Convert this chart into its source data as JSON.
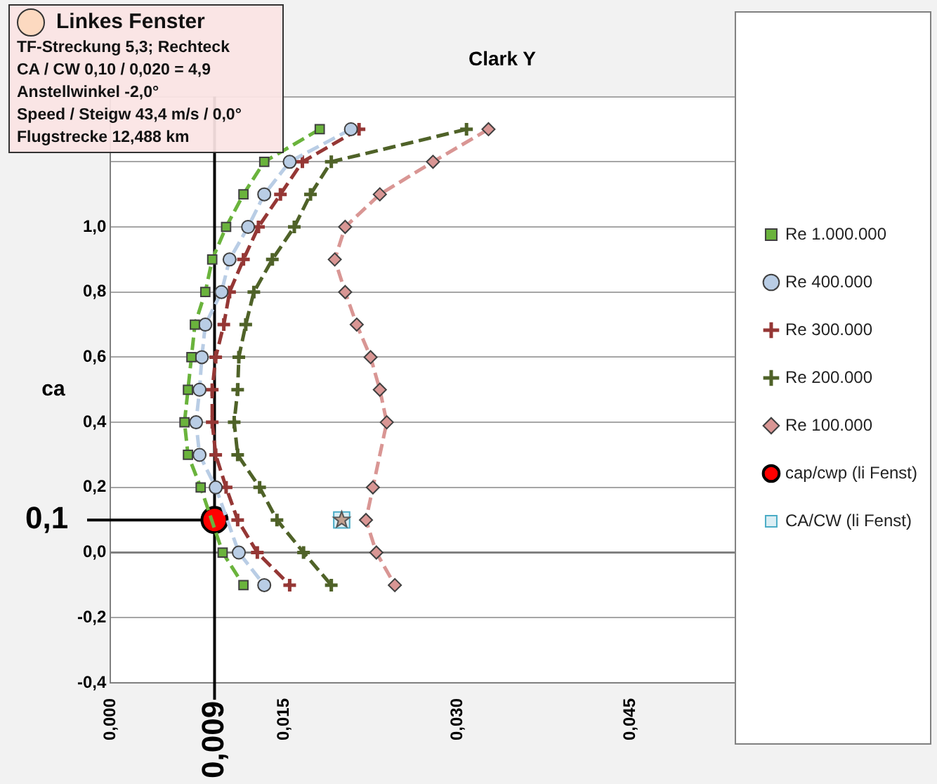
{
  "chart_data": {
    "type": "line",
    "title": "Clark Y",
    "ylabel": "ca",
    "annotations": [
      "Linkes Fenster",
      "TF-Streckung 5,3; Rechteck",
      "CA / CW   0,10 / 0,020 = 4,9",
      "Anstellwinkel  -2,0°",
      "Speed / Steigw 43,4 m/s / 0,0°",
      "Flugstrecke 12,488 km"
    ],
    "xlim": [
      0,
      0.054
    ],
    "ylim": [
      -0.4,
      1.4
    ],
    "xticks": [
      {
        "value": 0,
        "label": "0,000"
      },
      {
        "value": 0.015,
        "label": "0,015"
      },
      {
        "value": 0.03,
        "label": "0,030"
      },
      {
        "value": 0.045,
        "label": "0,045"
      }
    ],
    "yticks": [
      {
        "value": -0.4,
        "label": "-0,4"
      },
      {
        "value": -0.2,
        "label": "-0,2"
      },
      {
        "value": 0,
        "label": "0,0"
      },
      {
        "value": 0.2,
        "label": "0,2"
      },
      {
        "value": 0.4,
        "label": "0,4"
      },
      {
        "value": 0.6,
        "label": "0,6"
      },
      {
        "value": 0.8,
        "label": "0,8"
      },
      {
        "value": 1.0,
        "label": "1,0"
      },
      {
        "value": 1.2,
        "label": null
      },
      {
        "value": 1.4,
        "label": null
      }
    ],
    "grid": "y",
    "legend": "right",
    "ref_lines": [
      {
        "axis": "x",
        "value": 0.009,
        "label": "0,009",
        "color": "#000000"
      },
      {
        "axis": "y",
        "value": 0.1,
        "label": "0,1",
        "color": "#000000"
      }
    ],
    "series": [
      {
        "name": "Re 1.000.000",
        "color": "#6ab33c",
        "marker": "square",
        "line_style": "dashed",
        "x": [
          0.0181,
          0.0133,
          0.0115,
          0.01,
          0.0088,
          0.0082,
          0.0073,
          0.007,
          0.0067,
          0.0064,
          0.0067,
          0.0078,
          0.0097,
          0.0115
        ],
        "values": [
          1.3,
          1.2,
          1.1,
          1.0,
          0.9,
          0.8,
          0.7,
          0.6,
          0.5,
          0.4,
          0.3,
          0.2,
          0.0,
          -0.1
        ]
      },
      {
        "name": "Re 400.000",
        "color": "#b9cde5",
        "marker": "circle",
        "line_style": "dashed",
        "x": [
          0.0208,
          0.0155,
          0.0133,
          0.0119,
          0.0103,
          0.0096,
          0.0082,
          0.0079,
          0.0077,
          0.0074,
          0.0077,
          0.0091,
          0.0111,
          0.0133
        ],
        "values": [
          1.3,
          1.2,
          1.1,
          1.0,
          0.9,
          0.8,
          0.7,
          0.6,
          0.5,
          0.4,
          0.3,
          0.2,
          0.0,
          -0.1
        ]
      },
      {
        "name": "Re 300.000",
        "color": "#953735",
        "marker": "cross",
        "line_style": "dashed",
        "x": [
          0.0215,
          0.0166,
          0.0147,
          0.0128,
          0.0115,
          0.0103,
          0.0098,
          0.0091,
          0.0088,
          0.0088,
          0.0091,
          0.01,
          0.011,
          0.0127,
          0.0155
        ],
        "values": [
          1.3,
          1.2,
          1.1,
          1.0,
          0.9,
          0.8,
          0.7,
          0.6,
          0.5,
          0.4,
          0.3,
          0.2,
          0.1,
          0.0,
          -0.1
        ]
      },
      {
        "name": "Re 200.000",
        "color": "#4f6228",
        "marker": "cross",
        "line_style": "dashed",
        "x": [
          0.0308,
          0.0191,
          0.0173,
          0.0159,
          0.014,
          0.0124,
          0.0117,
          0.0111,
          0.011,
          0.0107,
          0.011,
          0.0129,
          0.0144,
          0.0167,
          0.0191
        ],
        "values": [
          1.3,
          1.2,
          1.1,
          1.0,
          0.9,
          0.8,
          0.7,
          0.6,
          0.5,
          0.4,
          0.3,
          0.2,
          0.1,
          0.0,
          -0.1
        ]
      },
      {
        "name": "Re 100.000",
        "color": "#d99694",
        "marker": "diamond",
        "line_style": "dashed",
        "x": [
          0.0327,
          0.0279,
          0.0233,
          0.0203,
          0.0194,
          0.0203,
          0.0213,
          0.0225,
          0.0233,
          0.0239,
          0.0227,
          0.0221,
          0.023,
          0.0246
        ],
        "values": [
          1.3,
          1.2,
          1.1,
          1.0,
          0.9,
          0.8,
          0.7,
          0.6,
          0.5,
          0.4,
          0.2,
          0.1,
          0.0,
          -0.1
        ]
      },
      {
        "name": "cap/cwp (li Fenst)",
        "type": "scatter",
        "color": "#ff0000",
        "marker": "circle",
        "x": [
          0.009
        ],
        "values": [
          0.1
        ]
      },
      {
        "name": "CA/CW (li Fenst)",
        "type": "scatter",
        "color": "#dbeef4",
        "marker": "square",
        "x": [
          0.02
        ],
        "values": [
          0.1
        ]
      }
    ]
  }
}
